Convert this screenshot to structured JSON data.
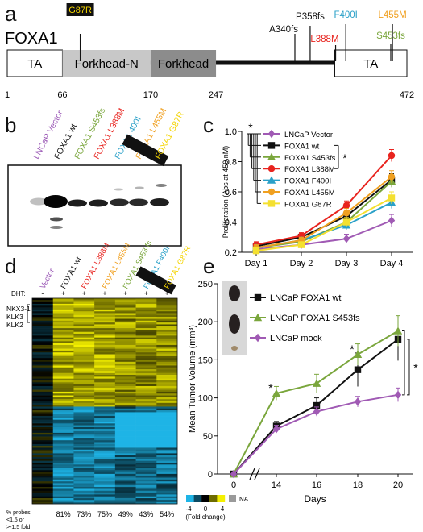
{
  "panel_labels": {
    "a": "a",
    "b": "b",
    "c": "c",
    "d": "d",
    "e": "e"
  },
  "panel_a": {
    "gene_name": "FOXA1",
    "domains": [
      {
        "label": "TA",
        "start": 1,
        "end": 66,
        "fill": "#ffffff"
      },
      {
        "label": "Forkhead-N",
        "start": 66,
        "end": 170,
        "fill": "#c8c8c8"
      },
      {
        "label": "Forkhead",
        "start": 170,
        "end": 247,
        "fill": "#8c8c8c"
      },
      {
        "label": "TA",
        "start": 387,
        "end": 472,
        "fill": "#ffffff"
      }
    ],
    "positions": [
      "1",
      "66",
      "170",
      "247",
      "472"
    ],
    "mutations": [
      {
        "label": "G87R",
        "color": "#111111",
        "highlight": "#f4d400"
      },
      {
        "label": "A340fs",
        "color": "#111111"
      },
      {
        "label": "P358fs",
        "color": "#111111"
      },
      {
        "label": "L388M",
        "color": "#e8231e"
      },
      {
        "label": "F400I",
        "color": "#2aa0c8"
      },
      {
        "label": "S453fs",
        "color": "#7aa63c"
      },
      {
        "label": "L455M",
        "color": "#f0a020"
      }
    ]
  },
  "panel_b": {
    "lanes": [
      {
        "label": "LNCaP Vector",
        "color": "#9b59b6"
      },
      {
        "label": "FOXA1 wt",
        "color": "#111111"
      },
      {
        "label": "FOXA1 S453fs",
        "color": "#7aa63c"
      },
      {
        "label": "FOXA1 L388M",
        "color": "#e8231e"
      },
      {
        "label": "FOXA1 400I",
        "color": "#2aa0c8"
      },
      {
        "label": "FOXA1 L455M",
        "color": "#f0a020"
      },
      {
        "label": "FOXA1 G87R",
        "color": "#f4d400",
        "highlight": "#111111"
      }
    ]
  },
  "chart_data": [
    {
      "type": "line",
      "panel": "c",
      "ylabel": "Proliferation (Abs at 450 nM)",
      "ylim": [
        0.2,
        1.0
      ],
      "yticks": [
        "0.2",
        "0.4",
        "0.6",
        "0.8",
        "1.0"
      ],
      "categories": [
        "Day 1",
        "Day 2",
        "Day 3",
        "Day 4"
      ],
      "series": [
        {
          "name": "LNCaP Vector",
          "color": "#a05ab4",
          "marker": "diamond",
          "values": [
            0.22,
            0.25,
            0.29,
            0.41
          ]
        },
        {
          "name": "FOXA1 wt",
          "color": "#111111",
          "marker": "square",
          "values": [
            0.24,
            0.3,
            0.44,
            0.68
          ]
        },
        {
          "name": "FOXA1 S453fs",
          "color": "#7aa63c",
          "marker": "triangle",
          "values": [
            0.23,
            0.27,
            0.4,
            0.67
          ]
        },
        {
          "name": "FOXA1 L388M",
          "color": "#e8231e",
          "marker": "circle",
          "values": [
            0.25,
            0.31,
            0.51,
            0.84
          ]
        },
        {
          "name": "FOXA1 F400I",
          "color": "#2aa0c8",
          "marker": "triangle",
          "values": [
            0.23,
            0.28,
            0.38,
            0.53
          ]
        },
        {
          "name": "FOXA1 L455M",
          "color": "#f0a020",
          "marker": "circle",
          "values": [
            0.23,
            0.28,
            0.46,
            0.7
          ]
        },
        {
          "name": "FOXA1 G87R",
          "color": "#f4e030",
          "marker": "square",
          "values": [
            0.21,
            0.25,
            0.4,
            0.56
          ]
        }
      ],
      "errors": [
        0.02,
        0.02,
        0.03,
        0.04
      ],
      "significance": "*"
    },
    {
      "type": "line",
      "panel": "e",
      "xlabel": "Days",
      "ylabel": "Mean Tumor Volume (mm³)",
      "ylim": [
        0,
        250
      ],
      "yticks": [
        "0",
        "50",
        "100",
        "150",
        "200",
        "250"
      ],
      "categories": [
        "0",
        "14",
        "16",
        "18",
        "20"
      ],
      "series": [
        {
          "name": "LNCaP FOXA1 wt",
          "color": "#111111",
          "marker": "square",
          "values": [
            0,
            63,
            90,
            137,
            177
          ],
          "errors": [
            0,
            6,
            10,
            22,
            28
          ]
        },
        {
          "name": "LNCaP FOXA1 S453fs",
          "color": "#7aa63c",
          "marker": "triangle",
          "values": [
            0,
            106,
            119,
            157,
            188
          ],
          "errors": [
            0,
            9,
            12,
            14,
            20
          ]
        },
        {
          "name": "LNCaP mock",
          "color": "#a05ab4",
          "marker": "diamond",
          "values": [
            0,
            59,
            82,
            95,
            104
          ],
          "errors": [
            0,
            5,
            6,
            7,
            9
          ]
        }
      ],
      "significance": "*"
    }
  ],
  "panel_d": {
    "dht_label": "DHT:",
    "dht_marks": [
      "-",
      "+",
      "+",
      "+",
      "+",
      "+",
      "+"
    ],
    "columns": [
      {
        "label": "Vector",
        "color": "#9b59b6"
      },
      {
        "label": "FOXA1 wt",
        "color": "#111111"
      },
      {
        "label": "FOXA1 L388M",
        "color": "#e8231e"
      },
      {
        "label": "FOXA1 L455M",
        "color": "#f0a020"
      },
      {
        "label": "FOXA1 S453 fs",
        "color": "#7aa63c"
      },
      {
        "label": "FOXA1 F400I",
        "color": "#2aa0c8"
      },
      {
        "label": "FOXA1 G87R",
        "color": "#f4d400",
        "highlight": "#111111"
      }
    ],
    "genes": [
      "NKX3-1",
      "KLK3",
      "KLK2"
    ],
    "footer_label": [
      "% probes",
      "<1.5 or",
      ">-1.5 fold:"
    ],
    "percentages": [
      "81%",
      "73%",
      "75%",
      "49%",
      "43%",
      "54%"
    ],
    "scale_ticks": [
      "-4",
      "0",
      "4"
    ],
    "scale_caption": "(Fold change)",
    "na_label": "NA"
  }
}
